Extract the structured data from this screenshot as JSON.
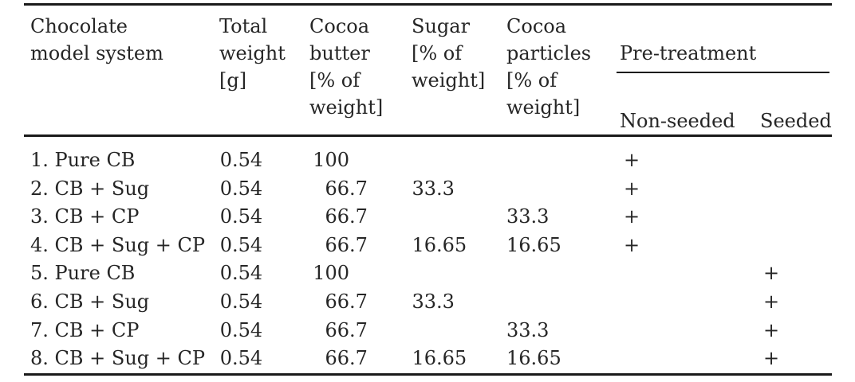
{
  "table": {
    "header": {
      "chocolate_model_system": "Chocolate\nmodel system",
      "total_weight": "Total\nweight\n[g]",
      "cocoa_butter": "Cocoa\nbutter\n[% of\nweight]",
      "sugar": "Sugar\n[% of\nweight]",
      "cocoa_particles": "Cocoa\nparticles\n[% of\nweight]",
      "pre_treatment": "Pre-treatment",
      "non_seeded": "Non-seeded",
      "seeded": "Seeded"
    },
    "rows": [
      {
        "system": "1. Pure CB",
        "total_weight": "0.54",
        "cocoa_butter": "100",
        "sugar": "",
        "cocoa_particles": "",
        "non_seeded": "+",
        "seeded": ""
      },
      {
        "system": "2. CB + Sug",
        "total_weight": "0.54",
        "cocoa_butter": "66.7",
        "sugar": "33.3",
        "cocoa_particles": "",
        "non_seeded": "+",
        "seeded": ""
      },
      {
        "system": "3. CB + CP",
        "total_weight": "0.54",
        "cocoa_butter": "66.7",
        "sugar": "",
        "cocoa_particles": "33.3",
        "non_seeded": "+",
        "seeded": ""
      },
      {
        "system": "4. CB + Sug + CP",
        "total_weight": "0.54",
        "cocoa_butter": "66.7",
        "sugar": "16.65",
        "cocoa_particles": "16.65",
        "non_seeded": "+",
        "seeded": ""
      },
      {
        "system": "5. Pure CB",
        "total_weight": "0.54",
        "cocoa_butter": "100",
        "sugar": "",
        "cocoa_particles": "",
        "non_seeded": "",
        "seeded": "+"
      },
      {
        "system": "6. CB + Sug",
        "total_weight": "0.54",
        "cocoa_butter": "66.7",
        "sugar": "33.3",
        "cocoa_particles": "",
        "non_seeded": "",
        "seeded": "+"
      },
      {
        "system": "7. CB + CP",
        "total_weight": "0.54",
        "cocoa_butter": "66.7",
        "sugar": "",
        "cocoa_particles": "33.3",
        "non_seeded": "",
        "seeded": "+"
      },
      {
        "system": "8. CB + Sug + CP",
        "total_weight": "0.54",
        "cocoa_butter": "66.7",
        "sugar": "16.65",
        "cocoa_particles": "16.65",
        "non_seeded": "",
        "seeded": "+"
      }
    ],
    "colors": {
      "text": "#262626",
      "rule": "#1a1a1a",
      "background": "#ffffff"
    }
  }
}
